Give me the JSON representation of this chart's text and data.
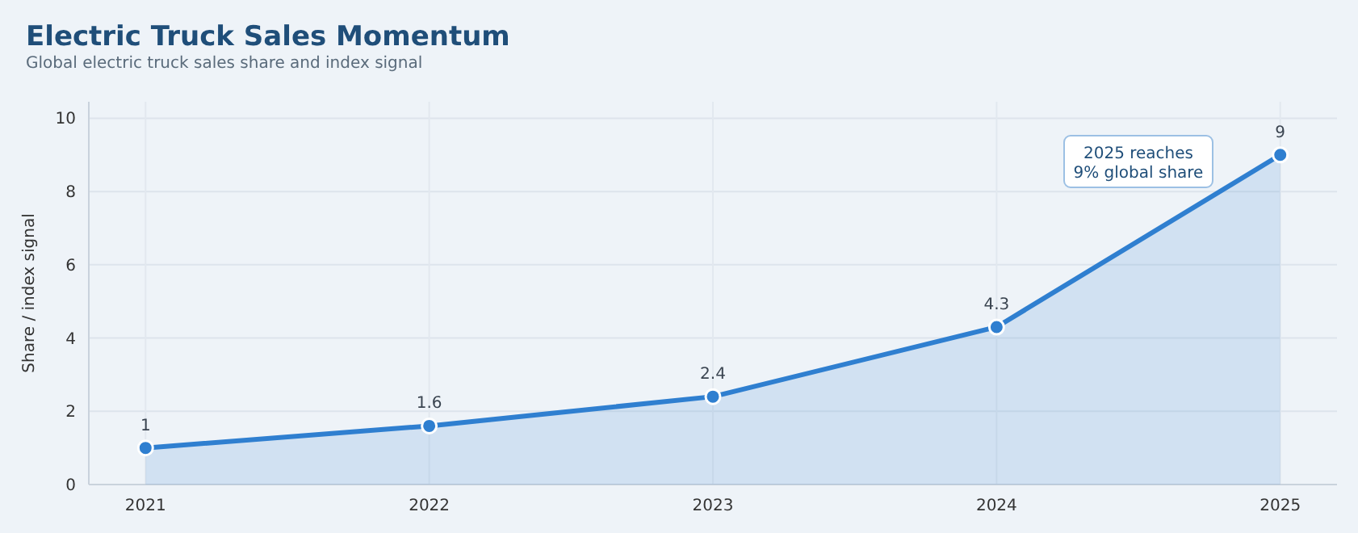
{
  "chart_data": {
    "type": "area",
    "title": "Electric Truck Sales Momentum",
    "subtitle": "Global electric truck sales share and index signal",
    "ylabel": "Share / index signal",
    "x": [
      2021,
      2022,
      2023,
      2024,
      2025
    ],
    "series": [
      {
        "color": "#2f7fd0",
        "values": [
          1,
          1.6,
          2.4,
          4.3,
          9
        ]
      }
    ],
    "xlim": [
      2020.8,
      2025.2
    ],
    "xticks": [
      2021,
      2022,
      2023,
      2024,
      2025
    ],
    "ylim": [
      0,
      10.45
    ],
    "yticks": [
      0,
      2,
      4,
      6,
      8,
      10
    ],
    "grid": true,
    "marker": "circle",
    "data_labels": true,
    "annotations": [
      "2025 reaches\n9% global share"
    ]
  }
}
